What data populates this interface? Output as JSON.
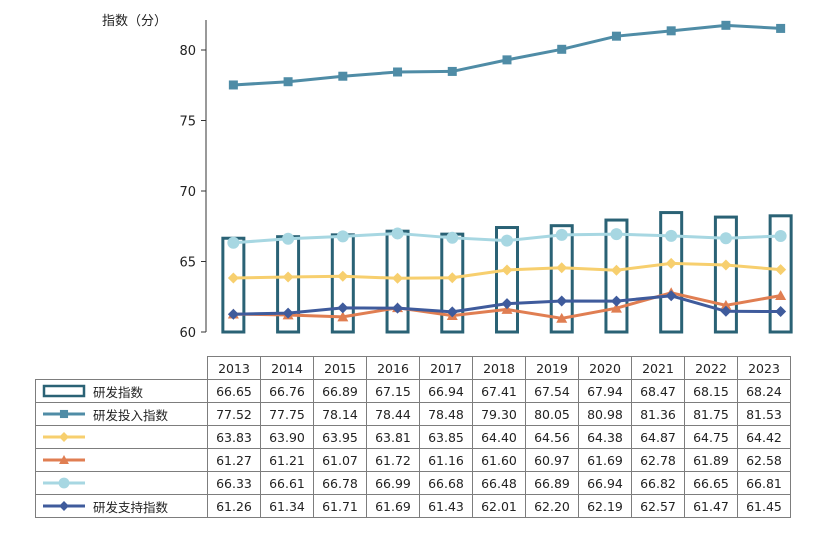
{
  "chart_data": {
    "type": "bar+line",
    "ylabel": "指数（分）",
    "y_ticks": [
      "60",
      "65",
      "70",
      "75",
      "80"
    ],
    "ylim": [
      60,
      82.5
    ],
    "categories": [
      "2013",
      "2014",
      "2015",
      "2016",
      "2017",
      "2018",
      "2019",
      "2020",
      "2021",
      "2022",
      "2023"
    ],
    "series": [
      {
        "name": "研发指数",
        "type": "bar",
        "color": "#2a6275",
        "values": [
          66.65,
          66.76,
          66.89,
          67.15,
          66.94,
          67.41,
          67.54,
          67.94,
          68.47,
          68.15,
          68.24
        ],
        "labels": [
          "66.65",
          "66.76",
          "66.89",
          "67.15",
          "66.94",
          "67.41",
          "67.54",
          "67.94",
          "68.47",
          "68.15",
          "68.24"
        ]
      },
      {
        "name": "研发投入指数",
        "type": "line",
        "marker": "square",
        "color": "#4f8ca6",
        "values": [
          77.52,
          77.75,
          78.14,
          78.44,
          78.48,
          79.3,
          80.05,
          80.98,
          81.36,
          81.75,
          81.53
        ],
        "labels": [
          "77.52",
          "77.75",
          "78.14",
          "78.44",
          "78.48",
          "79.30",
          "80.05",
          "80.98",
          "81.36",
          "81.75",
          "81.53"
        ]
      },
      {
        "name": "",
        "type": "line",
        "marker": "diamond",
        "color": "#f7cf6e",
        "values": [
          63.83,
          63.9,
          63.95,
          63.81,
          63.85,
          64.4,
          64.56,
          64.38,
          64.87,
          64.75,
          64.42
        ],
        "labels": [
          "63.83",
          "63.90",
          "63.95",
          "63.81",
          "63.85",
          "64.40",
          "64.56",
          "64.38",
          "64.87",
          "64.75",
          "64.42"
        ]
      },
      {
        "name": "",
        "type": "line",
        "marker": "triangle",
        "color": "#e07e52",
        "values": [
          61.27,
          61.21,
          61.07,
          61.72,
          61.16,
          61.6,
          60.97,
          61.69,
          62.78,
          61.89,
          62.58
        ],
        "labels": [
          "61.27",
          "61.21",
          "61.07",
          "61.72",
          "61.16",
          "61.60",
          "60.97",
          "61.69",
          "62.78",
          "61.89",
          "62.58"
        ]
      },
      {
        "name": "",
        "type": "line",
        "marker": "circle",
        "color": "#a7d7e2",
        "values": [
          66.33,
          66.61,
          66.78,
          66.99,
          66.68,
          66.48,
          66.89,
          66.94,
          66.82,
          66.65,
          66.81
        ],
        "labels": [
          "66.33",
          "66.61",
          "66.78",
          "66.99",
          "66.68",
          "66.48",
          "66.89",
          "66.94",
          "66.82",
          "66.65",
          "66.81"
        ]
      },
      {
        "name": "研发支持指数",
        "type": "line",
        "marker": "diamond",
        "color": "#3f5b9c",
        "values": [
          61.26,
          61.34,
          61.71,
          61.69,
          61.43,
          62.01,
          62.2,
          62.19,
          62.57,
          61.47,
          61.45
        ],
        "labels": [
          "61.26",
          "61.34",
          "61.71",
          "61.69",
          "61.43",
          "62.01",
          "62.20",
          "62.19",
          "62.57",
          "61.47",
          "61.45"
        ]
      }
    ],
    "grid": false,
    "legend": "table-left"
  }
}
